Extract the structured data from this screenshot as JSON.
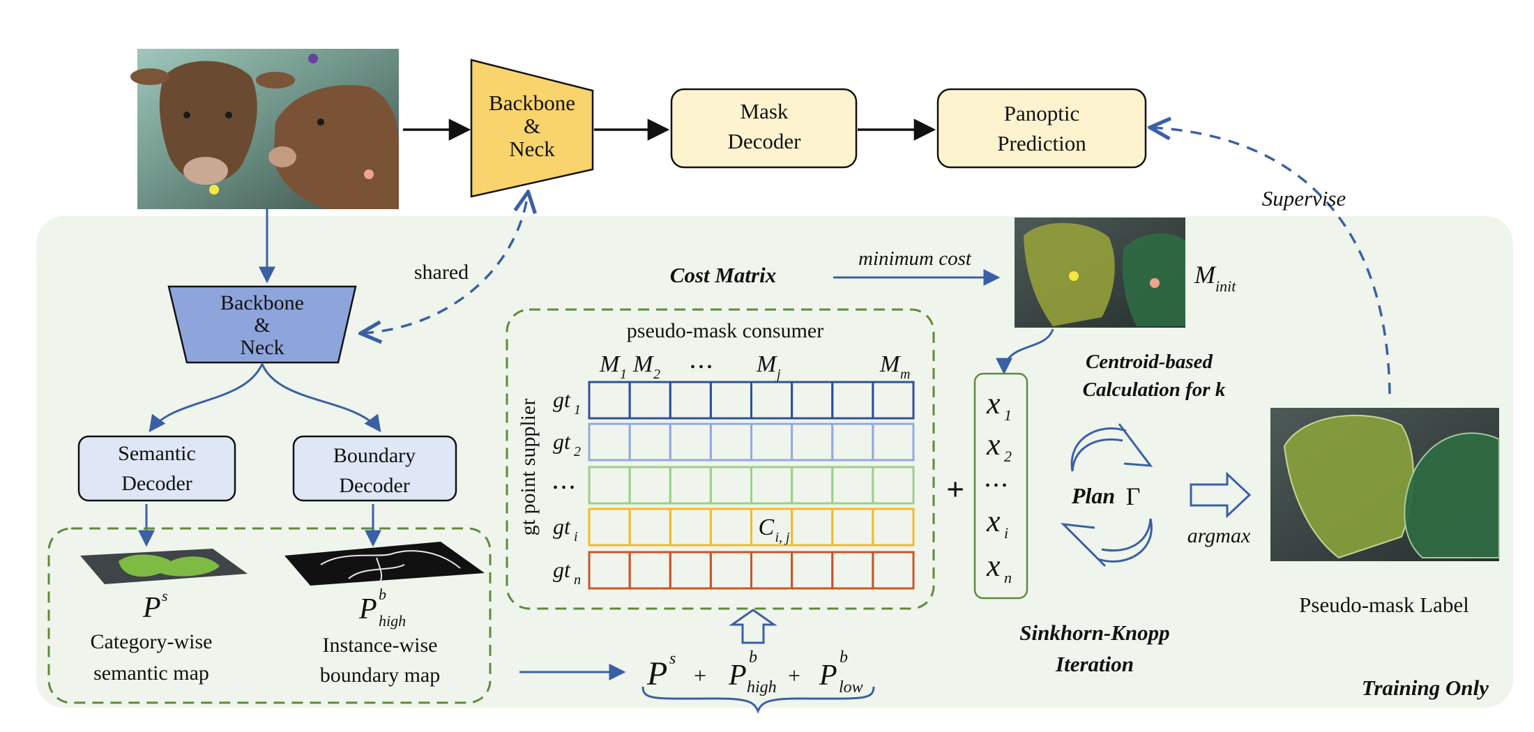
{
  "colors": {
    "training_bg": "#eff5ec",
    "blue_arrow": "#3a5fa5",
    "dashed_green": "#5e8a3a",
    "backbone_top_fill": "#f9d36b",
    "backbone_bottom_fill": "#8ea5dc",
    "decoder_fill": "#fef3cf",
    "decoder_blue_fill": "#dfe7f6",
    "row_colors": [
      "#2f4f9e",
      "#93a9e0",
      "#9bd08a",
      "#f2bb2a",
      "#c8552a"
    ]
  },
  "top": {
    "backbone_label": [
      "Backbone",
      "&",
      "Neck"
    ],
    "mask_decoder_label": [
      "Mask",
      "Decoder"
    ],
    "panoptic_label": [
      "Panoptic",
      "Prediction"
    ],
    "supervise_label": "Supervise",
    "input_image_icon": "cow-photo-with-points"
  },
  "training": {
    "shared_label": "shared",
    "backbone_label": [
      "Backbone",
      "&",
      "Neck"
    ],
    "semantic_decoder_label": [
      "Semantic",
      "Decoder"
    ],
    "boundary_decoder_label": [
      "Boundary",
      "Decoder"
    ],
    "semantic_map_symbol": "P",
    "semantic_map_sup": "s",
    "semantic_map_caption": [
      "Category-wise",
      "semantic map"
    ],
    "boundary_map_symbol": "P",
    "boundary_map_sup": "b",
    "boundary_map_sub": "high",
    "boundary_map_caption": [
      "Instance-wise",
      "boundary map"
    ],
    "sum_formula": {
      "p": "P",
      "s": "s",
      "b": "b",
      "high": "high",
      "low": "low",
      "plus": "+"
    },
    "cost_matrix_label": "Cost Matrix",
    "minimum_cost_label": "minimum cost",
    "m_init_symbol": "M",
    "m_init_sub": "init",
    "centroid_label": [
      "Centroid-based",
      "Calculation for k"
    ],
    "consumer_label": "pseudo-mask consumer",
    "supplier_label": "gt point supplier",
    "column_headers": [
      {
        "base": "M",
        "sub": "1"
      },
      {
        "base": "M",
        "sub": "2"
      },
      {
        "base": "• • •",
        "sub": ""
      },
      {
        "base": "M",
        "sub": "j"
      },
      {
        "base": "M",
        "sub": "m"
      }
    ],
    "row_headers": [
      {
        "base": "gt",
        "sub": "1"
      },
      {
        "base": "gt",
        "sub": "2"
      },
      {
        "base": "• • •",
        "sub": ""
      },
      {
        "base": "gt",
        "sub": "i"
      },
      {
        "base": "gt",
        "sub": "n"
      }
    ],
    "cell_label": {
      "base": "C",
      "sub": "i, j"
    },
    "plus_sign": "+",
    "x_vector": [
      {
        "base": "x",
        "sub": "1"
      },
      {
        "base": "x",
        "sub": "2"
      },
      {
        "base": "• • •",
        "sub": ""
      },
      {
        "base": "x",
        "sub": "i"
      },
      {
        "base": "x",
        "sub": "n"
      }
    ],
    "plan_label": "Plan",
    "gamma_symbol": "Γ",
    "argmax_label": "argmax",
    "pseudo_mask_label": "Pseudo-mask Label",
    "sinkhorn_label": [
      "Sinkhorn-Knopp",
      "Iteration"
    ],
    "training_only_label": "Training Only"
  }
}
